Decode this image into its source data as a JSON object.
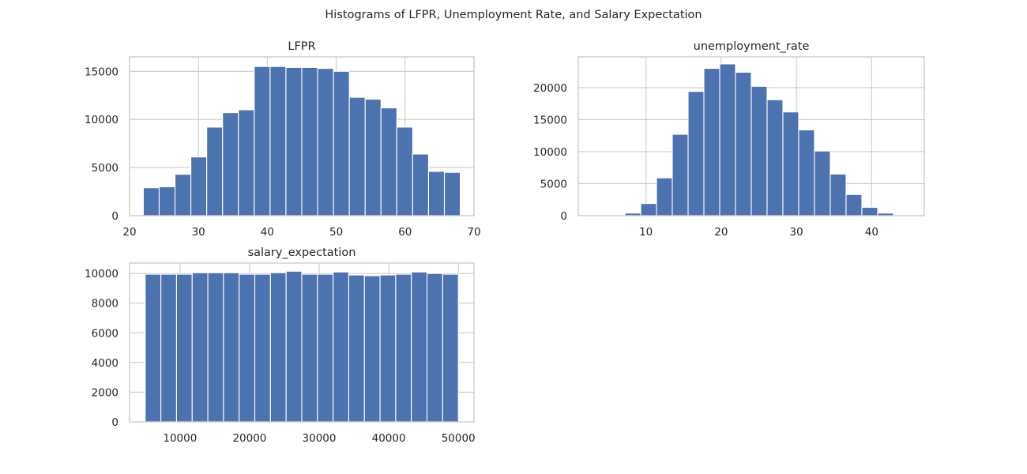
{
  "figure": {
    "title": "Histograms of LFPR, Unemployment Rate, and Salary Expectation"
  },
  "chart_data": [
    {
      "type": "bar",
      "subtype": "histogram",
      "title": "LFPR",
      "xlabel": "",
      "ylabel": "",
      "bin_range": [
        22,
        68
      ],
      "bins": 20,
      "counts": [
        2900,
        3000,
        4300,
        6100,
        9200,
        10700,
        11000,
        15500,
        15500,
        15400,
        15400,
        15300,
        15000,
        12300,
        12100,
        11200,
        9200,
        6400,
        4600,
        4500
      ],
      "xlim": [
        20,
        70
      ],
      "ylim": [
        0,
        16500
      ],
      "xticks": [
        20,
        30,
        40,
        50,
        60,
        70
      ],
      "yticks": [
        0,
        5000,
        10000,
        15000
      ],
      "color": "#4c72b0",
      "grid": true
    },
    {
      "type": "bar",
      "subtype": "histogram",
      "title": "unemployment_rate",
      "xlabel": "",
      "ylabel": "",
      "bin_range": [
        3.0,
        45.0
      ],
      "bins": 20,
      "counts": [
        20,
        60,
        400,
        1900,
        5900,
        12700,
        19400,
        23000,
        23700,
        22400,
        20200,
        18100,
        16200,
        13400,
        10100,
        6500,
        3300,
        1300,
        400,
        100
      ],
      "xlim": [
        1.0,
        47.0
      ],
      "ylim": [
        0,
        24800
      ],
      "xticks": [
        10,
        20,
        30,
        40
      ],
      "yticks": [
        0,
        5000,
        10000,
        15000,
        20000
      ],
      "color": "#4c72b0",
      "grid": true
    },
    {
      "type": "bar",
      "subtype": "histogram",
      "title": "salary_expectation",
      "xlabel": "",
      "ylabel": "",
      "bin_range": [
        5000,
        50000
      ],
      "bins": 20,
      "counts": [
        9950,
        9950,
        9950,
        10050,
        10050,
        10050,
        9950,
        9950,
        10050,
        10150,
        9950,
        9950,
        10100,
        9900,
        9850,
        9900,
        9950,
        10100,
        10000,
        9950
      ],
      "xlim": [
        2750,
        52250
      ],
      "ylim": [
        0,
        10700
      ],
      "xticks": [
        10000,
        20000,
        30000,
        40000,
        50000
      ],
      "yticks": [
        0,
        2000,
        4000,
        6000,
        8000,
        10000
      ],
      "color": "#4c72b0",
      "grid": true
    }
  ]
}
